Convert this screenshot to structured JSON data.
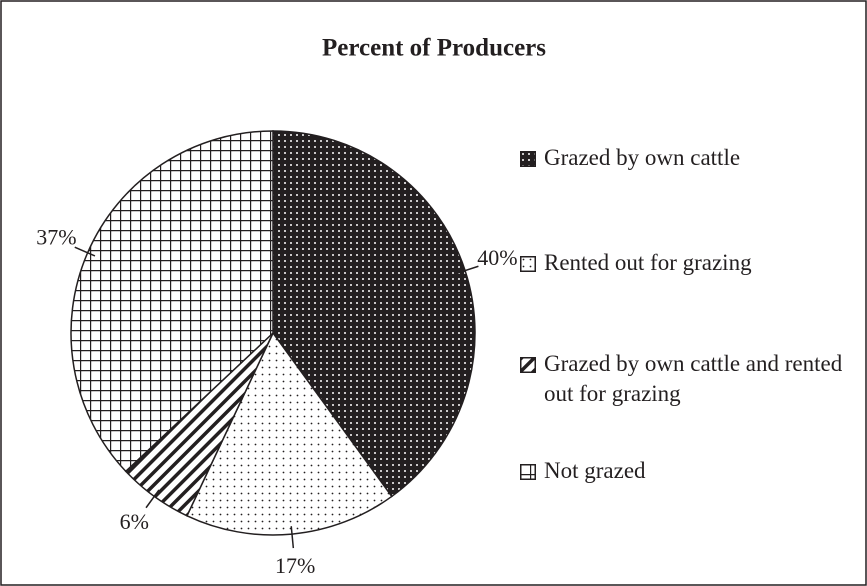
{
  "chart_data": {
    "type": "pie",
    "title": "Percent of Producers",
    "categories": [
      "Grazed by own cattle",
      "Rented out for grazing",
      "Grazed by own cattle and rented out for grazing",
      "Not grazed"
    ],
    "values": [
      40,
      17,
      6,
      37
    ],
    "value_labels": [
      "40%",
      "17%",
      "6%",
      "37%"
    ]
  }
}
